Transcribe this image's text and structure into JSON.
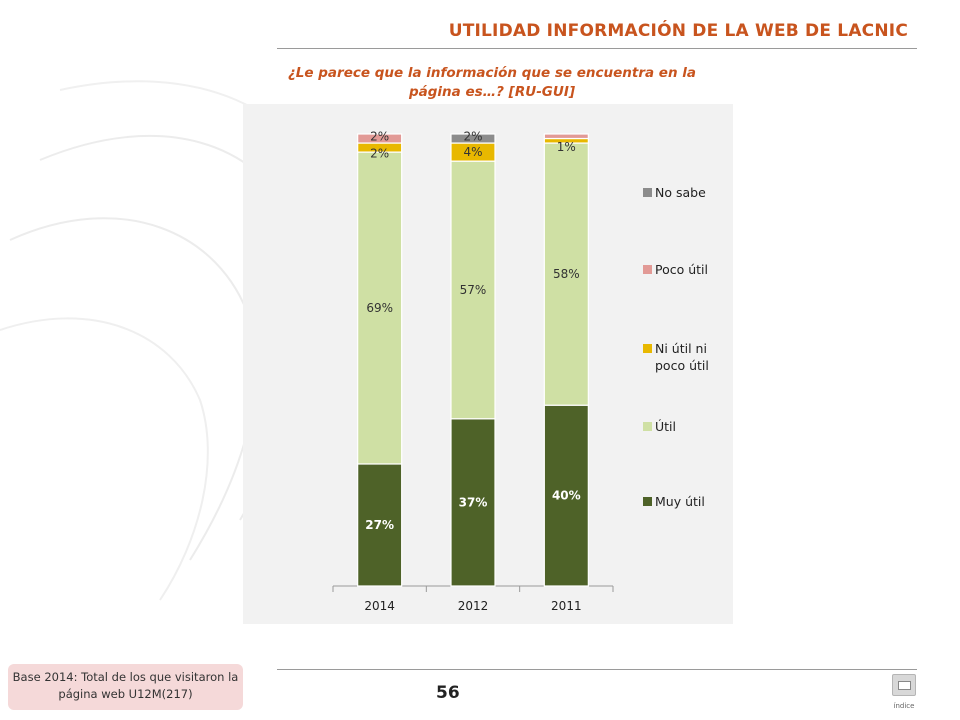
{
  "header": {
    "title": "UTILIDAD INFORMACIÓN DE LA WEB DE LACNIC",
    "question": "¿Le parece que la información que se encuentra en la página es…? [RU-GUI]"
  },
  "footer": {
    "base_note": "Base 2014: Total de los que visitaron la página web U12M(217)",
    "page_number": "56",
    "index_label": "índice"
  },
  "colors": {
    "accent": "#c8541e",
    "muy_util": "#4e6228",
    "util": "#cfe0a4",
    "ni_util": "#e8b800",
    "poco_util": "#e29a96",
    "no_sabe": "#8c8c8c"
  },
  "chart_data": {
    "type": "bar",
    "stacked": true,
    "categories": [
      "2014",
      "2012",
      "2011"
    ],
    "ylim": [
      0,
      100
    ],
    "legend_position": "right",
    "series": [
      {
        "name": "Muy útil",
        "values": [
          27,
          37,
          40
        ],
        "labels": [
          "27%",
          "37%",
          "40%"
        ]
      },
      {
        "name": "Útil",
        "values": [
          69,
          57,
          58
        ],
        "labels": [
          "69%",
          "57%",
          "58%"
        ]
      },
      {
        "name": "Ni útil ni poco útil",
        "values": [
          2,
          4,
          1
        ],
        "labels": [
          "2%",
          "4%",
          "1%"
        ]
      },
      {
        "name": "Poco útil",
        "values": [
          2,
          0,
          1
        ],
        "labels": [
          "2%",
          "",
          ""
        ]
      },
      {
        "name": "No sabe",
        "values": [
          0,
          2,
          0
        ],
        "labels": [
          "",
          "2%",
          ""
        ]
      }
    ],
    "legend_order": [
      "No sabe",
      "Poco útil",
      "Ni útil ni poco útil",
      "Útil",
      "Muy útil"
    ]
  }
}
